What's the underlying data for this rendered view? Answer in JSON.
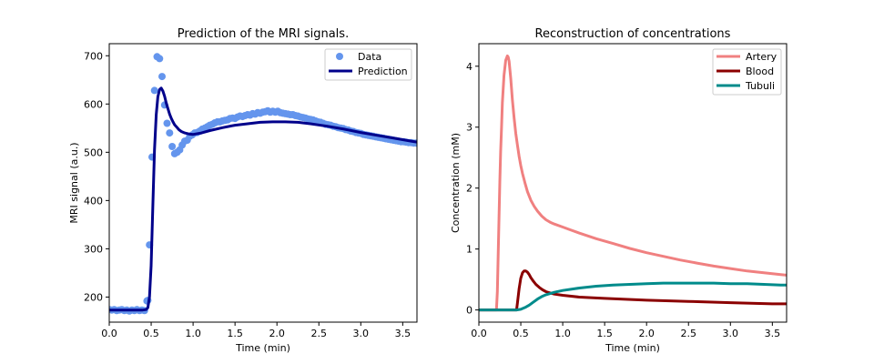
{
  "chart_data": [
    {
      "type": "line",
      "title": "Prediction of the MRI signals.",
      "xlabel": "Time (min)",
      "ylabel": "MRI signal (a.u.)",
      "xlim": [
        0,
        3.67
      ],
      "ylim": [
        148,
        725
      ],
      "xticks": [
        0.0,
        0.5,
        1.0,
        1.5,
        2.0,
        2.5,
        3.0,
        3.5
      ],
      "xtick_labels": [
        "0.0",
        "0.5",
        "1.0",
        "1.5",
        "2.0",
        "2.5",
        "3.0",
        "3.5"
      ],
      "yticks": [
        200,
        300,
        400,
        500,
        600,
        700
      ],
      "ytick_labels": [
        "200",
        "300",
        "400",
        "500",
        "600",
        "700"
      ],
      "legend_position": "top-right",
      "series": [
        {
          "name": "Data",
          "kind": "scatter",
          "color": "#6495ED",
          "x": [
            0.0,
            0.03,
            0.06,
            0.09,
            0.12,
            0.15,
            0.18,
            0.21,
            0.24,
            0.27,
            0.3,
            0.33,
            0.36,
            0.39,
            0.42,
            0.45,
            0.46,
            0.48,
            0.51,
            0.54,
            0.57,
            0.6,
            0.63,
            0.66,
            0.69,
            0.72,
            0.75,
            0.78,
            0.81,
            0.84,
            0.87,
            0.9,
            0.93,
            0.96,
            0.99,
            1.02,
            1.05,
            1.08,
            1.11,
            1.14,
            1.17,
            1.2,
            1.23,
            1.26,
            1.29,
            1.32,
            1.35,
            1.38,
            1.41,
            1.44,
            1.47,
            1.5,
            1.53,
            1.56,
            1.59,
            1.62,
            1.65,
            1.68,
            1.71,
            1.74,
            1.77,
            1.8,
            1.83,
            1.86,
            1.89,
            1.92,
            1.95,
            1.98,
            2.01,
            2.04,
            2.07,
            2.1,
            2.13,
            2.16,
            2.19,
            2.22,
            2.25,
            2.28,
            2.31,
            2.34,
            2.37,
            2.4,
            2.43,
            2.46,
            2.49,
            2.52,
            2.55,
            2.58,
            2.61,
            2.64,
            2.67,
            2.7,
            2.73,
            2.76,
            2.79,
            2.82,
            2.85,
            2.88,
            2.91,
            2.94,
            2.97,
            3.0,
            3.03,
            3.06,
            3.09,
            3.12,
            3.15,
            3.18,
            3.21,
            3.24,
            3.27,
            3.3,
            3.33,
            3.36,
            3.39,
            3.42,
            3.45,
            3.48,
            3.51,
            3.54,
            3.57,
            3.6,
            3.63,
            3.66
          ],
          "y": [
            174,
            173,
            174,
            172,
            173,
            174,
            172,
            173,
            171,
            173,
            172,
            174,
            172,
            173,
            172,
            192,
            193,
            308,
            490,
            628,
            698,
            694,
            657,
            598,
            560,
            540,
            512,
            497,
            500,
            505,
            515,
            523,
            525,
            533,
            536,
            540,
            541,
            544,
            548,
            550,
            553,
            556,
            558,
            561,
            563,
            563,
            565,
            566,
            567,
            570,
            571,
            570,
            573,
            575,
            574,
            576,
            578,
            577,
            580,
            579,
            582,
            581,
            583,
            584,
            586,
            583,
            585,
            583,
            585,
            582,
            581,
            580,
            579,
            578,
            578,
            576,
            575,
            573,
            572,
            571,
            569,
            568,
            567,
            565,
            563,
            562,
            560,
            558,
            557,
            556,
            554,
            553,
            551,
            550,
            549,
            547,
            546,
            544,
            543,
            541,
            540,
            539,
            537,
            536,
            535,
            534,
            533,
            532,
            531,
            530,
            529,
            528,
            527,
            526,
            525,
            524,
            523,
            522,
            522,
            521,
            520,
            520,
            519,
            519
          ]
        },
        {
          "name": "Prediction",
          "kind": "line",
          "color": "#00008B",
          "x": [
            0.0,
            0.4,
            0.44,
            0.46,
            0.48,
            0.5,
            0.52,
            0.54,
            0.56,
            0.58,
            0.6,
            0.62,
            0.64,
            0.66,
            0.68,
            0.7,
            0.72,
            0.74,
            0.76,
            0.78,
            0.8,
            0.83,
            0.86,
            0.9,
            0.95,
            1.0,
            1.1,
            1.2,
            1.35,
            1.5,
            1.65,
            1.8,
            1.95,
            2.1,
            2.25,
            2.4,
            2.6,
            2.8,
            3.0,
            3.2,
            3.4,
            3.6,
            3.67
          ],
          "y": [
            173,
            173,
            174,
            178,
            200,
            265,
            390,
            505,
            578,
            615,
            630,
            633,
            627,
            616,
            602,
            590,
            579,
            570,
            563,
            557,
            553,
            547,
            543,
            540,
            538,
            537,
            540,
            545,
            551,
            556,
            559,
            562,
            563,
            563,
            562,
            559,
            554,
            548,
            541,
            535,
            529,
            523,
            521
          ]
        }
      ]
    },
    {
      "type": "line",
      "title": "Reconstruction of concentrations",
      "xlabel": "Time (min)",
      "ylabel": "Concentration (mM)",
      "xlim": [
        0,
        3.67
      ],
      "ylim": [
        -0.2,
        4.37
      ],
      "xticks": [
        0.0,
        0.5,
        1.0,
        1.5,
        2.0,
        2.5,
        3.0,
        3.5
      ],
      "xtick_labels": [
        "0.0",
        "0.5",
        "1.0",
        "1.5",
        "2.0",
        "2.5",
        "3.0",
        "3.5"
      ],
      "yticks": [
        0,
        1,
        2,
        3,
        4
      ],
      "ytick_labels": [
        "0",
        "1",
        "2",
        "3",
        "4"
      ],
      "legend_position": "top-right",
      "series": [
        {
          "name": "Artery",
          "color": "#F08080",
          "x": [
            0.0,
            0.21,
            0.22,
            0.23,
            0.24,
            0.25,
            0.26,
            0.27,
            0.28,
            0.3,
            0.32,
            0.34,
            0.35,
            0.36,
            0.38,
            0.4,
            0.42,
            0.44,
            0.46,
            0.48,
            0.5,
            0.52,
            0.55,
            0.58,
            0.62,
            0.66,
            0.7,
            0.75,
            0.8,
            0.85,
            0.9,
            1.0,
            1.1,
            1.2,
            1.4,
            1.6,
            1.8,
            2.0,
            2.2,
            2.4,
            2.6,
            2.8,
            3.0,
            3.2,
            3.4,
            3.6,
            3.67
          ],
          "y": [
            0,
            0,
            0.3,
            0.9,
            1.5,
            2.1,
            2.6,
            3.0,
            3.4,
            3.85,
            4.1,
            4.17,
            4.15,
            4.08,
            3.8,
            3.45,
            3.15,
            2.9,
            2.7,
            2.52,
            2.37,
            2.24,
            2.08,
            1.94,
            1.8,
            1.7,
            1.62,
            1.54,
            1.48,
            1.44,
            1.41,
            1.36,
            1.31,
            1.26,
            1.17,
            1.09,
            1.01,
            0.94,
            0.88,
            0.82,
            0.77,
            0.72,
            0.68,
            0.64,
            0.61,
            0.58,
            0.57
          ]
        },
        {
          "name": "Blood",
          "color": "#8B0000",
          "x": [
            0.0,
            0.45,
            0.46,
            0.48,
            0.5,
            0.52,
            0.54,
            0.56,
            0.58,
            0.6,
            0.62,
            0.65,
            0.68,
            0.72,
            0.76,
            0.8,
            0.85,
            0.9,
            1.0,
            1.2,
            1.5,
            2.0,
            2.5,
            3.0,
            3.5,
            3.67
          ],
          "y": [
            0,
            0,
            0.12,
            0.35,
            0.52,
            0.61,
            0.64,
            0.64,
            0.62,
            0.58,
            0.53,
            0.47,
            0.42,
            0.37,
            0.33,
            0.3,
            0.28,
            0.26,
            0.24,
            0.21,
            0.19,
            0.16,
            0.14,
            0.12,
            0.1,
            0.1
          ]
        },
        {
          "name": "Tubuli",
          "color": "#008B8B",
          "x": [
            0.0,
            0.45,
            0.5,
            0.55,
            0.6,
            0.65,
            0.7,
            0.75,
            0.8,
            0.9,
            1.0,
            1.2,
            1.4,
            1.6,
            1.8,
            2.0,
            2.2,
            2.4,
            2.6,
            2.8,
            3.0,
            3.2,
            3.4,
            3.6,
            3.67
          ],
          "y": [
            0,
            0,
            0.01,
            0.04,
            0.08,
            0.13,
            0.18,
            0.22,
            0.25,
            0.29,
            0.32,
            0.36,
            0.39,
            0.41,
            0.42,
            0.43,
            0.44,
            0.44,
            0.44,
            0.44,
            0.43,
            0.43,
            0.42,
            0.41,
            0.41
          ]
        }
      ]
    }
  ]
}
